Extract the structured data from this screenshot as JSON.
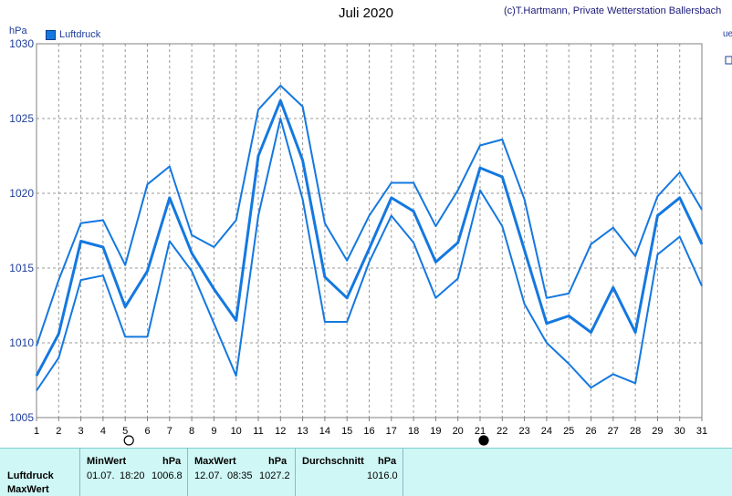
{
  "header": {
    "title": "Juli 2020",
    "credit": "(c)T.Hartmann, Private Wetterstation Ballersbach",
    "unit": "hPa"
  },
  "legend": {
    "label": "Luftdruck",
    "color": "#1478e0"
  },
  "chart_data": {
    "type": "line",
    "categories": [
      "1",
      "2",
      "3",
      "4",
      "5",
      "6",
      "7",
      "8",
      "9",
      "10",
      "11",
      "12",
      "13",
      "14",
      "15",
      "16",
      "17",
      "18",
      "19",
      "20",
      "21",
      "22",
      "23",
      "24",
      "25",
      "26",
      "27",
      "28",
      "29",
      "30",
      "31"
    ],
    "ylim": [
      1005,
      1030
    ],
    "yticks": [
      "1005",
      "1010",
      "1015",
      "1020",
      "1025",
      "1030"
    ],
    "grid": true,
    "series": [
      {
        "role": "max",
        "values": [
          1009.8,
          1014.2,
          1018.0,
          1018.2,
          1015.2,
          1020.6,
          1021.8,
          1017.2,
          1016.4,
          1018.2,
          1025.6,
          1027.2,
          1025.8,
          1018.0,
          1015.5,
          1018.5,
          1020.7,
          1020.7,
          1017.8,
          1020.2,
          1023.2,
          1023.6,
          1019.6,
          1013.0,
          1013.3,
          1016.6,
          1017.7,
          1015.8,
          1019.8,
          1021.4,
          1018.9
        ]
      },
      {
        "role": "avg",
        "values": [
          1007.8,
          1010.6,
          1016.8,
          1016.4,
          1012.4,
          1014.8,
          1019.7,
          1016.0,
          1013.6,
          1011.5,
          1022.5,
          1026.2,
          1022.2,
          1014.4,
          1013.0,
          1016.3,
          1019.7,
          1018.8,
          1015.4,
          1016.7,
          1021.7,
          1021.1,
          1016.2,
          1011.3,
          1011.8,
          1010.7,
          1013.7,
          1010.7,
          1018.5,
          1019.7,
          1016.6
        ]
      },
      {
        "role": "min",
        "values": [
          1006.8,
          1009.0,
          1014.2,
          1014.5,
          1010.4,
          1010.4,
          1016.8,
          1014.8,
          1011.3,
          1007.8,
          1018.5,
          1025.0,
          1019.6,
          1011.4,
          1011.4,
          1015.4,
          1018.5,
          1016.7,
          1013.0,
          1014.3,
          1020.2,
          1017.8,
          1012.6,
          1010.0,
          1008.6,
          1007.0,
          1007.9,
          1007.3,
          1015.9,
          1017.1,
          1013.8
        ]
      }
    ],
    "moon_phases": [
      {
        "day": "5",
        "phase": "full"
      },
      {
        "day": "21",
        "phase": "new"
      }
    ]
  },
  "panel": {
    "row1_label": "Luftdruck",
    "row2_label": "MaxWert",
    "minwert": {
      "header": "MinWert",
      "unit": "hPa",
      "date": "01.07.",
      "time": "18:20",
      "value": "1006.8"
    },
    "maxwert": {
      "header": "MaxWert",
      "unit": "hPa",
      "date": "12.07.",
      "time": "08:35",
      "value": "1027.2"
    },
    "durchschnitt": {
      "header": "Durchschnitt",
      "unit": "hPa",
      "value": "1016.0"
    }
  }
}
